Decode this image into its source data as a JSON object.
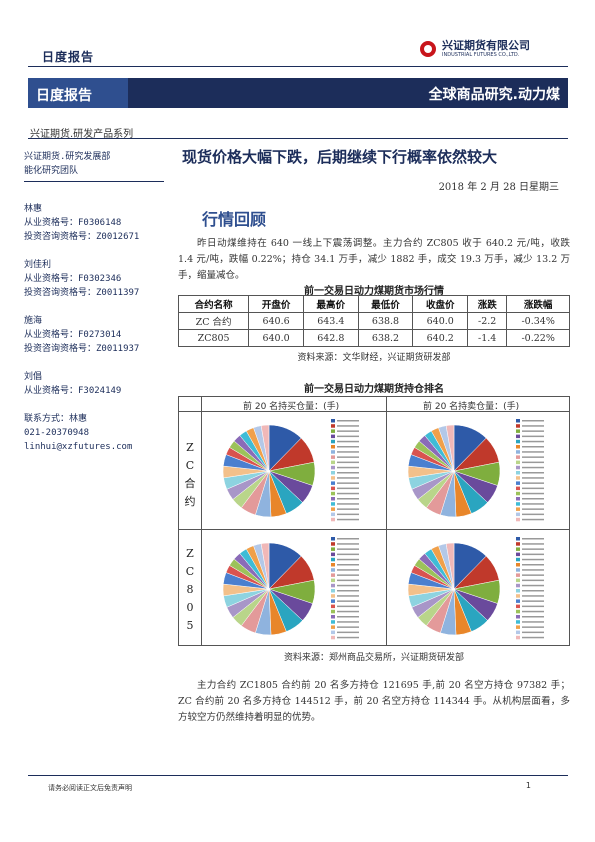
{
  "header": {
    "report_type": "日度报告",
    "company_cn": "兴证期货有限公司",
    "company_en": "INDUSTRIAL FUTURES CO.,LTD.",
    "banner_left": "日度报告",
    "banner_right": "全球商品研究.动力煤",
    "series": "兴证期货.研发产品系列"
  },
  "sidebar": {
    "dept": "兴证期货.研究发展部",
    "team": "能化研究团队",
    "analysts": [
      {
        "name": "林惠",
        "lines": [
          "从业资格号：F0306148",
          "投资咨询资格号：Z0012671"
        ]
      },
      {
        "name": "刘佳利",
        "lines": [
          "从业资格号：F0302346",
          "投资咨询资格号：Z0011397"
        ]
      },
      {
        "name": "施海",
        "lines": [
          "从业资格号：F0273014",
          "投资咨询资格号：Z0011937"
        ]
      },
      {
        "name": "刘倡",
        "lines": [
          "从业资格号：F3024149"
        ]
      }
    ],
    "contact_label": "联系方式：林惠",
    "phone": "021-20370948",
    "email": "linhui@xzfutures.com"
  },
  "main": {
    "headline": "现货价格大幅下跌，后期继续下行概率依然较大",
    "date": "2018 年 2 月 28 日星期三",
    "section_title": "行情回顾",
    "para1": "昨日动煤维持在 640 一线上下震荡调整。主力合约 ZC805 收于 640.2 元/吨，收跌 1.4 元/吨，跌幅 0.22%；持仓 34.1 万手，减少 1882 手，成交 19.3 万手，减少 13.2 万手，缩量减仓。",
    "table_caption": "前一交易日动力煤期货市场行情",
    "table_headers": [
      "合约名称",
      "开盘价",
      "最高价",
      "最低价",
      "收盘价",
      "涨跌",
      "涨跌幅"
    ],
    "table_rows": [
      [
        "ZC 合约",
        "640.6",
        "643.4",
        "638.8",
        "640.0",
        "-2.2",
        "-0.34%"
      ],
      [
        "ZC805",
        "640.0",
        "642.8",
        "638.2",
        "640.2",
        "-1.4",
        "-0.22%"
      ]
    ],
    "table_source": "资料来源：文华财经，兴证期货研发部",
    "pie_caption": "前一交易日动力煤期货持仓排名",
    "pie_col_long": "前 20 名持买仓量：(手)",
    "pie_col_short": "前 20 名持卖仓量：(手)",
    "pie_row1_label": [
      "Z",
      "C",
      "合",
      "约"
    ],
    "pie_row2_label": [
      "Z",
      "C",
      "8",
      "0",
      "5"
    ],
    "pie_source": "资料来源：郑州商品交易所，兴证期货研发部",
    "para2": "主力合约 ZC1805 合约前 20 名多方持仓 121695 手,前 20 名空方持仓 97382 手；ZC 合约前 20 名多方持仓 144512 手，前 20 名空方持仓 114344 手。从机构层面看，多方较空方仍然维持着明显的优势。"
  },
  "colors": {
    "navy": "#1c2d5a",
    "pie": [
      "#2e5aa8",
      "#c0392b",
      "#7fae3e",
      "#6a4a9c",
      "#2aa5c0",
      "#e8862a",
      "#8fb3de",
      "#e39a9a",
      "#b9d58a",
      "#a896c8",
      "#8dd3e0",
      "#f3c08a",
      "#4a7fcf",
      "#d9534f",
      "#9cc25a",
      "#8a6bb8",
      "#3fbcd6",
      "#f0a04a",
      "#b3c8e8",
      "#f0b8b8"
    ]
  },
  "footer": {
    "disclaimer": "请务必阅读正文后免责声明",
    "page": "1"
  }
}
